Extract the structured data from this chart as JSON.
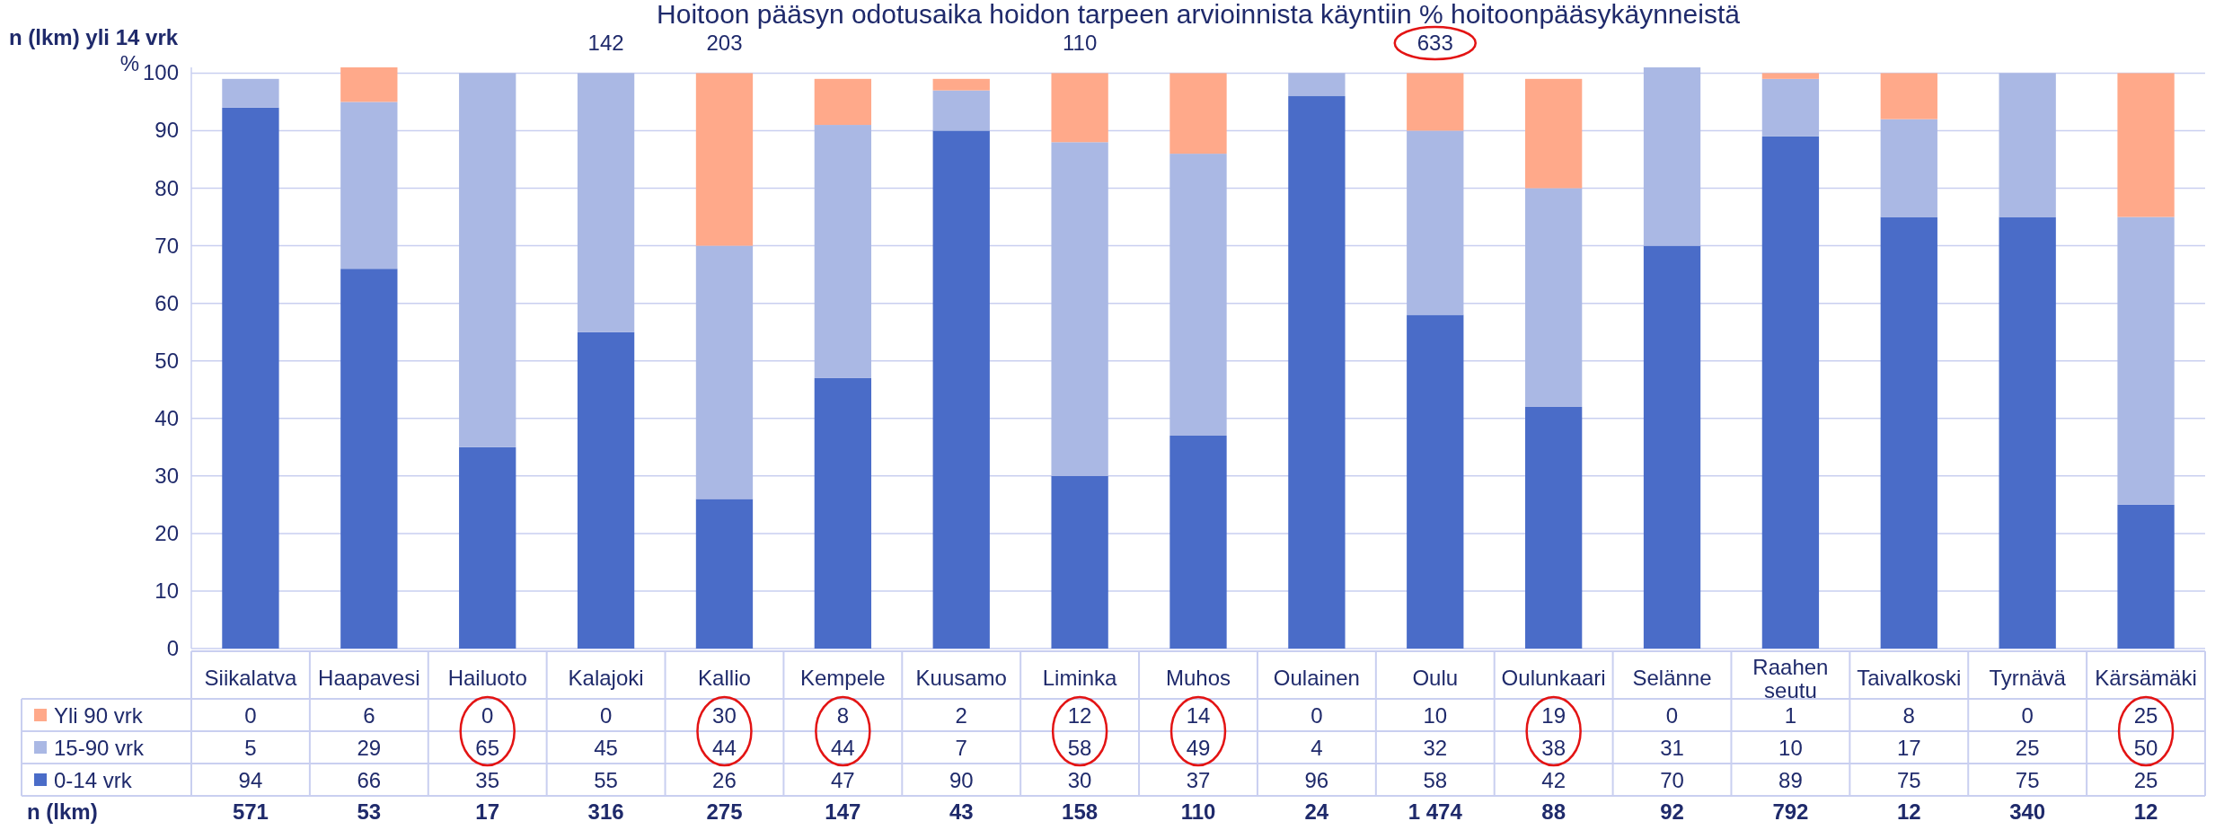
{
  "chart_data": {
    "type": "bar",
    "stacked": true,
    "title": "Hoitoon pääsyn odotusaika hoidon tarpeen arvioinnista käyntiin % hoitoonpääsykäynneistä",
    "ylabel": "%",
    "categories": [
      "Siikalatva",
      "Haapavesi",
      "Hailuoto",
      "Kalajoki",
      "Kallio",
      "Kempele",
      "Kuusamo",
      "Liminka",
      "Muhos",
      "Oulainen",
      "Oulu",
      "Oulunkaari",
      "Selänne",
      "Raahen seutu",
      "Taivalkoski",
      "Tyrnävä",
      "Kärsämäki"
    ],
    "series": [
      {
        "name": "0-14 vrk",
        "color": "#4a6cc8",
        "values": [
          94,
          66,
          35,
          55,
          26,
          47,
          90,
          30,
          37,
          96,
          58,
          42,
          70,
          89,
          75,
          75,
          25
        ]
      },
      {
        "name": "15-90 vrk",
        "color": "#aab8e4",
        "values": [
          5,
          29,
          65,
          45,
          44,
          44,
          7,
          58,
          49,
          4,
          32,
          38,
          31,
          10,
          17,
          25,
          50
        ]
      },
      {
        "name": "Yli 90 vrk",
        "color": "#ffa98a",
        "values": [
          0,
          6,
          0,
          0,
          30,
          8,
          2,
          12,
          14,
          0,
          10,
          19,
          0,
          1,
          8,
          0,
          25
        ]
      }
    ],
    "ylim": [
      0,
      101
    ],
    "yticks": [
      0,
      10,
      20,
      30,
      40,
      50,
      60,
      70,
      80,
      90,
      100
    ],
    "grid": "y",
    "data_labels": true,
    "legend": "bottom",
    "annotations": [
      "n (lkm) yli 14 vrk",
      "142",
      "203",
      "110",
      "633",
      "n (lkm)",
      "571",
      "53",
      "17",
      "316",
      "275",
      "147",
      "43",
      "158",
      "110",
      "24",
      "1 474",
      "88",
      "92",
      "792",
      "12",
      "340",
      "12"
    ]
  }
}
